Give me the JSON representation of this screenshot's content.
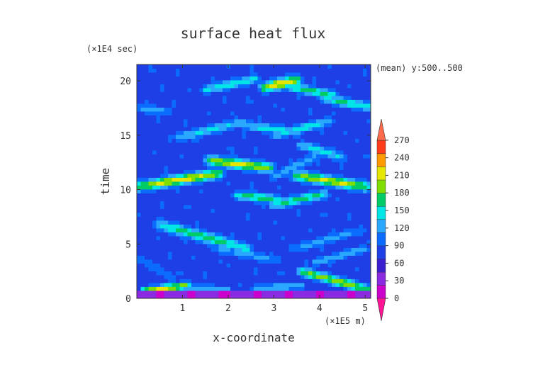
{
  "chart_data": {
    "type": "heatmap",
    "title": "surface heat flux",
    "xlabel": "x-coordinate",
    "ylabel": "time",
    "x_unit": "(×1E5 m)",
    "y_unit": "(×1E4 sec)",
    "annotation": "(mean) y:500..500",
    "xlim": [
      0,
      5.12
    ],
    "ylim": [
      0,
      21.5
    ],
    "x_ticks": [
      1,
      2,
      3,
      4,
      5
    ],
    "y_ticks": [
      0,
      5,
      10,
      15,
      20
    ],
    "colorbar": {
      "levels": [
        0,
        30,
        60,
        90,
        120,
        150,
        180,
        210,
        240,
        270
      ],
      "labels": [
        "0",
        "30",
        "60",
        "90",
        "120",
        "150",
        "180",
        "210",
        "240",
        "270"
      ],
      "under_color": "#ff1493",
      "over_color": "#ff6a4a",
      "colors": [
        "#cc00cc",
        "#8a2be2",
        "#3a1fd0",
        "#1f3fe6",
        "#0b6bff",
        "#2aa8ff",
        "#00e5e5",
        "#00cc66",
        "#7fdd00",
        "#e6e600",
        "#ff9900",
        "#ff3b1a"
      ]
    },
    "base_value": 75,
    "features": [
      {
        "x0": 0.15,
        "t0": 0.7,
        "x1": 1.1,
        "t1": 1.2,
        "peak": 260,
        "width": 0.25
      },
      {
        "x0": 1.0,
        "t0": 1.0,
        "x1": 2.0,
        "t1": 0.8,
        "peak": 150,
        "width": 0.25
      },
      {
        "x0": 2.6,
        "t0": 0.9,
        "x1": 3.6,
        "t1": 1.2,
        "peak": 160,
        "width": 0.25
      },
      {
        "x0": 3.6,
        "t0": 2.5,
        "x1": 5.1,
        "t1": 0.8,
        "peak": 240,
        "width": 0.3
      },
      {
        "x0": 3.9,
        "t0": 3.3,
        "x1": 5.0,
        "t1": 4.6,
        "peak": 150,
        "width": 0.25
      },
      {
        "x0": 0.1,
        "t0": 3.6,
        "x1": 0.8,
        "t1": 1.8,
        "peak": 120,
        "width": 0.3
      },
      {
        "x0": 0.5,
        "t0": 6.8,
        "x1": 2.4,
        "t1": 4.6,
        "peak": 200,
        "width": 0.35
      },
      {
        "x0": 1.7,
        "t0": 4.6,
        "x1": 3.1,
        "t1": 3.5,
        "peak": 130,
        "width": 0.3
      },
      {
        "x0": 3.4,
        "t0": 4.5,
        "x1": 4.9,
        "t1": 6.3,
        "peak": 130,
        "width": 0.3
      },
      {
        "x0": 0.05,
        "t0": 10.3,
        "x1": 1.8,
        "t1": 11.5,
        "peak": 260,
        "width": 0.35
      },
      {
        "x0": 1.6,
        "t0": 12.7,
        "x1": 2.9,
        "t1": 12.0,
        "peak": 250,
        "width": 0.35
      },
      {
        "x0": 2.2,
        "t0": 9.5,
        "x1": 3.1,
        "t1": 9.1,
        "peak": 200,
        "width": 0.3
      },
      {
        "x0": 3.0,
        "t0": 8.6,
        "x1": 4.1,
        "t1": 9.6,
        "peak": 200,
        "width": 0.3
      },
      {
        "x0": 3.5,
        "t0": 11.3,
        "x1": 5.0,
        "t1": 10.3,
        "peak": 250,
        "width": 0.35
      },
      {
        "x0": 3.0,
        "t0": 11.2,
        "x1": 3.9,
        "t1": 13.0,
        "peak": 140,
        "width": 0.3
      },
      {
        "x0": 0.9,
        "t0": 14.8,
        "x1": 2.3,
        "t1": 16.2,
        "peak": 160,
        "width": 0.3
      },
      {
        "x0": 2.4,
        "t0": 15.9,
        "x1": 3.5,
        "t1": 15.3,
        "peak": 170,
        "width": 0.3
      },
      {
        "x0": 3.6,
        "t0": 14.1,
        "x1": 4.5,
        "t1": 13.0,
        "peak": 170,
        "width": 0.3
      },
      {
        "x0": 3.0,
        "t0": 15.0,
        "x1": 4.2,
        "t1": 16.3,
        "peak": 170,
        "width": 0.3
      },
      {
        "x0": 1.5,
        "t0": 19.2,
        "x1": 2.6,
        "t1": 20.2,
        "peak": 180,
        "width": 0.3
      },
      {
        "x0": 2.8,
        "t0": 19.4,
        "x1": 3.5,
        "t1": 20.1,
        "peak": 270,
        "width": 0.35
      },
      {
        "x0": 3.2,
        "t0": 19.6,
        "x1": 4.3,
        "t1": 18.7,
        "peak": 200,
        "width": 0.3
      },
      {
        "x0": 4.1,
        "t0": 18.4,
        "x1": 5.1,
        "t1": 17.6,
        "peak": 190,
        "width": 0.3
      },
      {
        "x0": 0.0,
        "t0": 17.5,
        "x1": 0.7,
        "t1": 17.2,
        "peak": 130,
        "width": 0.3
      }
    ]
  }
}
